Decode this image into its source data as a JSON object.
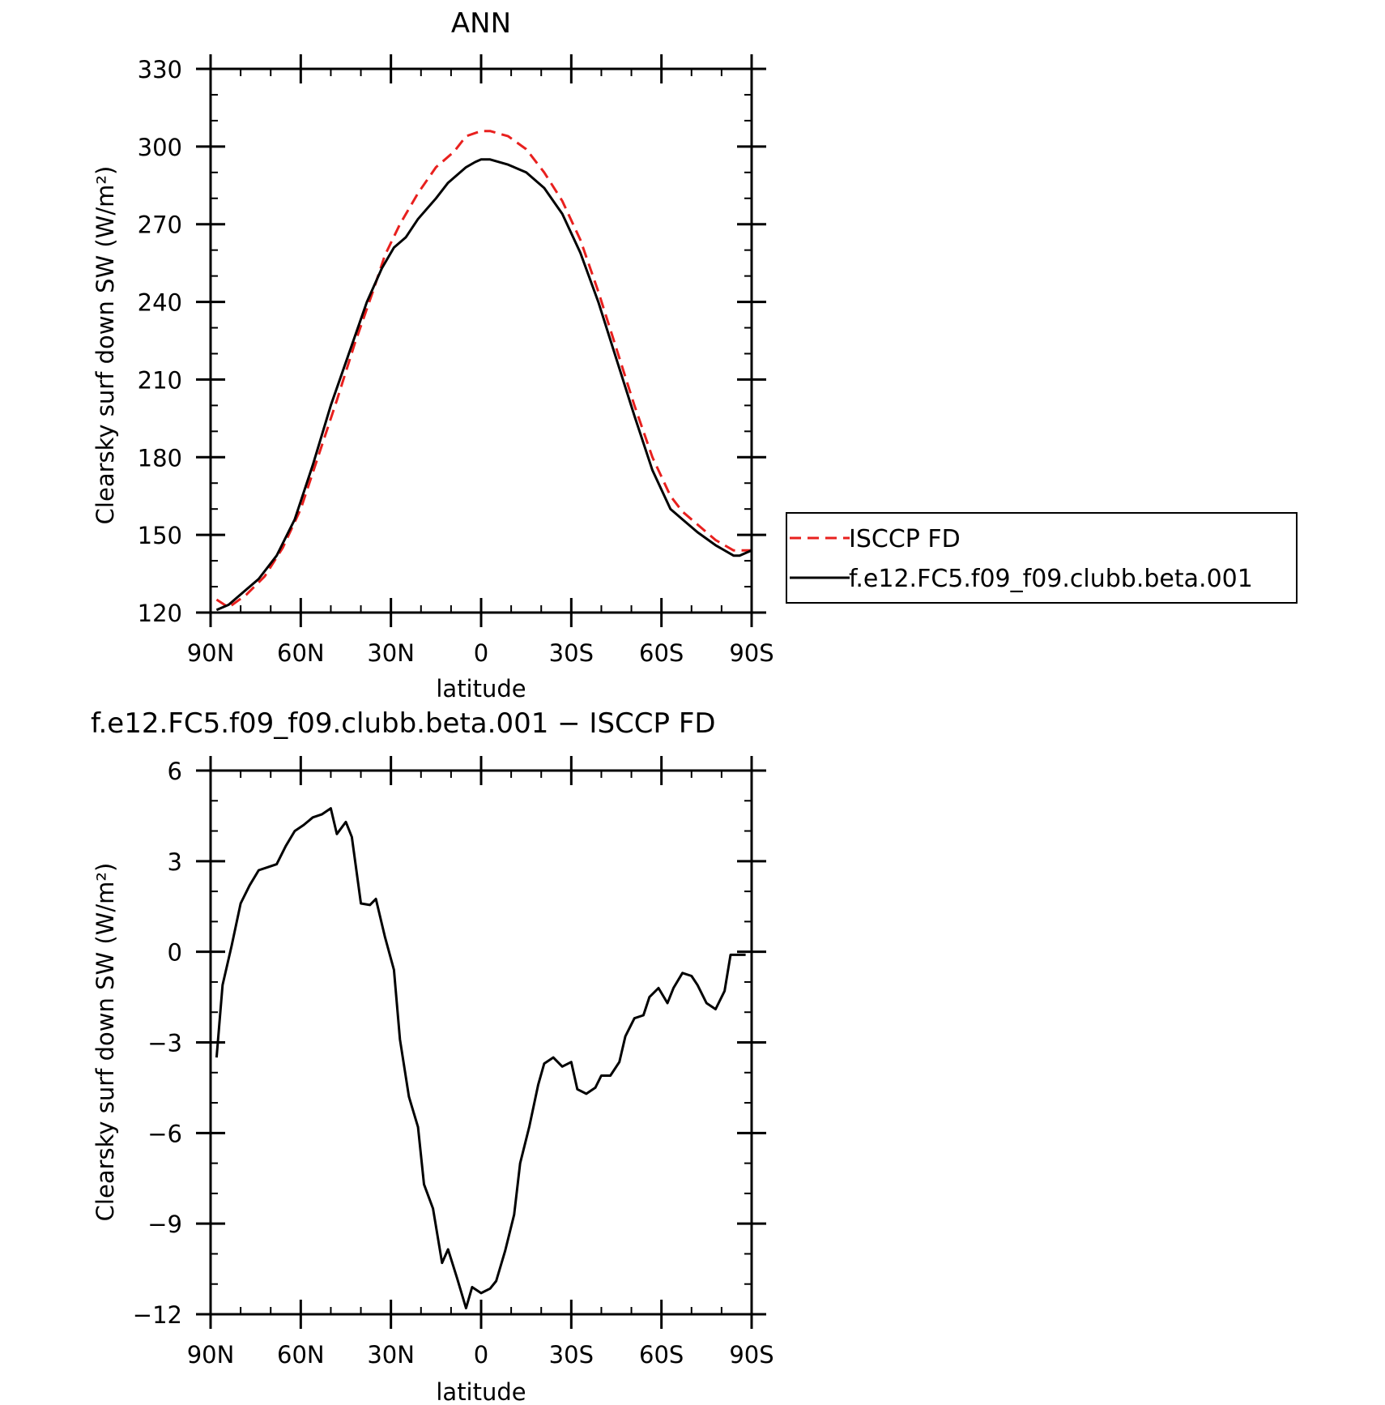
{
  "chart_data": [
    {
      "type": "line",
      "title": "ANN",
      "xlabel": "latitude",
      "ylabel": "Clearsky surf down SW (W/m²)",
      "xlim": [
        90,
        -90
      ],
      "ylim": [
        120,
        330
      ],
      "xticks": [
        90,
        60,
        30,
        0,
        -30,
        -60,
        -90
      ],
      "xtick_labels": [
        "90N",
        "60N",
        "30N",
        "0",
        "30S",
        "60S",
        "90S"
      ],
      "yticks": [
        120,
        150,
        180,
        210,
        240,
        270,
        300,
        330
      ],
      "ytick_labels": [
        "120",
        "150",
        "180",
        "210",
        "240",
        "270",
        "300",
        "330"
      ],
      "legend_position": "right",
      "series": [
        {
          "name": "ISCCP FD",
          "color": "#e8201e",
          "style": "dashed",
          "x": [
            88,
            84,
            78,
            72,
            66,
            60,
            54,
            48,
            42,
            36,
            32,
            27,
            21,
            15,
            9,
            5,
            0,
            -3,
            -9,
            -15,
            -21,
            -27,
            -33,
            -39,
            -45,
            -51,
            -57,
            -63,
            -67,
            -72,
            -78,
            -84,
            -90
          ],
          "y": [
            125,
            122,
            127,
            134,
            145,
            160,
            181,
            202,
            224,
            244,
            258,
            270,
            282,
            292,
            298,
            304,
            306,
            306,
            304,
            299,
            290,
            279,
            264,
            244,
            222,
            200,
            180,
            165,
            159,
            154,
            148,
            144,
            144
          ]
        },
        {
          "name": "f.e12.FC5.f09_f09.clubb.beta.001",
          "color": "#000000",
          "style": "solid",
          "x": [
            88,
            84,
            80,
            74,
            68,
            62,
            56,
            50,
            44,
            38,
            33,
            29,
            25,
            21,
            15,
            11,
            8,
            5,
            2,
            0,
            -3,
            -9,
            -15,
            -21,
            -27,
            -33,
            -39,
            -45,
            -51,
            -57,
            -63,
            -67,
            -72,
            -78,
            -84,
            -86,
            -90
          ],
          "y": [
            121,
            123,
            127,
            133,
            142,
            156,
            177,
            200,
            220,
            240,
            253,
            261,
            265,
            272,
            280,
            286,
            289,
            292,
            294,
            295,
            295,
            293,
            290,
            284,
            274,
            259,
            240,
            218,
            196,
            175,
            160,
            156,
            151,
            146,
            142,
            142,
            144
          ]
        }
      ]
    },
    {
      "type": "line",
      "title": "f.e12.FC5.f09_f09.clubb.beta.001 − ISCCP FD",
      "xlabel": "latitude",
      "ylabel": "Clearsky surf down SW (W/m²)",
      "xlim": [
        90,
        -90
      ],
      "ylim": [
        -12,
        6
      ],
      "xticks": [
        90,
        60,
        30,
        0,
        -30,
        -60,
        -90
      ],
      "xtick_labels": [
        "90N",
        "60N",
        "30N",
        "0",
        "30S",
        "60S",
        "90S"
      ],
      "yticks": [
        -12,
        -9,
        -6,
        -3,
        0,
        3,
        6
      ],
      "ytick_labels": [
        "−12",
        "−9",
        "−6",
        "−3",
        "0",
        "3",
        "6"
      ],
      "series": [
        {
          "color": "#000000",
          "style": "solid",
          "x": [
            88,
            86,
            83,
            80,
            77,
            74,
            71,
            68,
            65,
            62,
            59,
            56,
            53,
            50,
            48,
            45,
            43,
            40,
            37,
            35,
            32,
            29,
            27,
            24,
            21,
            19,
            16,
            13,
            11,
            8,
            5,
            3,
            0,
            -3,
            -5,
            -8,
            -11,
            -13,
            -16,
            -19,
            -21,
            -24,
            -27,
            -30,
            -32,
            -35,
            -38,
            -40,
            -43,
            -46,
            -48,
            -51,
            -54,
            -56,
            -59,
            -62,
            -64,
            -67,
            -70,
            -72,
            -75,
            -78,
            -81,
            -83,
            -85,
            -88
          ],
          "y": [
            -3.5,
            -1.1,
            0.2,
            1.6,
            2.2,
            2.7,
            2.8,
            2.9,
            3.5,
            4.0,
            4.2,
            4.45,
            4.55,
            4.75,
            3.9,
            4.3,
            3.8,
            1.6,
            1.55,
            1.75,
            0.5,
            -0.6,
            -2.9,
            -4.8,
            -5.8,
            -7.7,
            -8.5,
            -10.3,
            -9.85,
            -10.8,
            -11.8,
            -11.1,
            -11.3,
            -11.15,
            -10.9,
            -9.9,
            -8.7,
            -7.0,
            -5.8,
            -4.4,
            -3.7,
            -3.5,
            -3.8,
            -3.65,
            -4.55,
            -4.7,
            -4.5,
            -4.1,
            -4.1,
            -3.65,
            -2.8,
            -2.2,
            -2.1,
            -1.5,
            -1.2,
            -1.7,
            -1.2,
            -0.7,
            -0.8,
            -1.1,
            -1.7,
            -1.9,
            -1.3,
            -0.1,
            -0.1,
            -0.1
          ]
        }
      ]
    }
  ]
}
